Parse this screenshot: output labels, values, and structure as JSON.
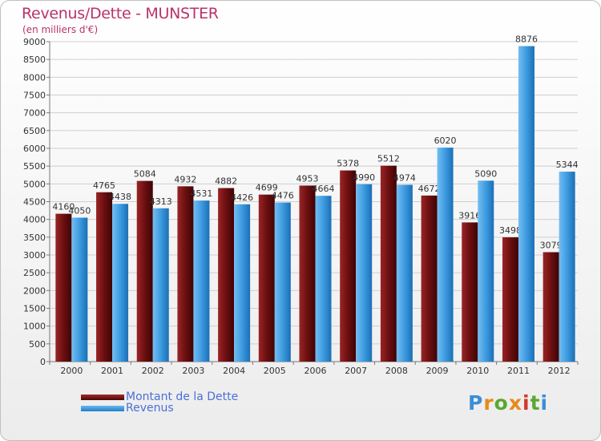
{
  "title": "Revenus/Dette - MUNSTER",
  "subtitle": "(en milliers d'€)",
  "logo": {
    "text": "Proxiti",
    "colors": [
      "#3a8fd6",
      "#e8891c",
      "#5aa832",
      "#e8891c",
      "#d03a2a",
      "#5aa832",
      "#3a8fd6"
    ]
  },
  "colors": {
    "dette": "#6b0f10",
    "revenus": "#3d9be0",
    "title": "#b8336a",
    "legend_text": "#4a6fd8"
  },
  "chart_data": {
    "type": "bar",
    "title": "Revenus/Dette - MUNSTER",
    "ylabel": "(en milliers d'€)",
    "xlabel": "",
    "ylim": [
      0,
      9000
    ],
    "ytick_step": 500,
    "yticks": [
      "0",
      "500",
      "1000",
      "1500",
      "2000",
      "2500",
      "3000",
      "3500",
      "4000",
      "4500",
      "5000",
      "5500",
      "6000",
      "6500",
      "7000",
      "7500",
      "8000",
      "8500",
      "9000"
    ],
    "categories": [
      "2000",
      "2001",
      "2002",
      "2003",
      "2004",
      "2005",
      "2006",
      "2007",
      "2008",
      "2009",
      "2010",
      "2011",
      "2012"
    ],
    "series": [
      {
        "name": "Montant de la Dette",
        "color": "#6b0f10",
        "values": [
          4160,
          4765,
          5084,
          4932,
          4882,
          4699,
          4953,
          5378,
          5512,
          4672,
          3916,
          3498,
          3079
        ]
      },
      {
        "name": "Revenus",
        "color": "#3d9be0",
        "values": [
          4050,
          4438,
          4313,
          4531,
          4426,
          4476,
          4664,
          4990,
          4974,
          6020,
          5090,
          8876,
          5344
        ]
      }
    ],
    "grid": true,
    "legend": "bottom-left"
  }
}
